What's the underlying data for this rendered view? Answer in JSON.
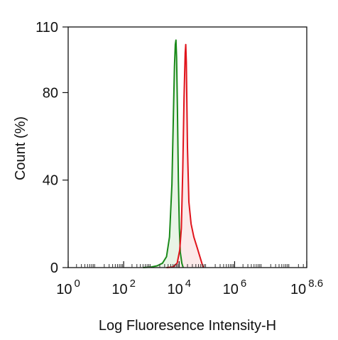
{
  "chart_data": {
    "type": "area",
    "title": "",
    "xlabel": "Log Fluoresence Intensity-H",
    "ylabel": "Count  (%)",
    "x_scale": "log",
    "xlim": [
      1,
      398107170
    ],
    "ylim": [
      0,
      110
    ],
    "x_ticks": [
      {
        "base": "10",
        "exp": "0",
        "value": 1
      },
      {
        "base": "10",
        "exp": "2",
        "value": 100
      },
      {
        "base": "10",
        "exp": "4",
        "value": 10000
      },
      {
        "base": "10",
        "exp": "6",
        "value": 1000000
      },
      {
        "base": "10",
        "exp": "8.6",
        "value": 398107170
      }
    ],
    "y_ticks": [
      {
        "label": "0",
        "value": 0
      },
      {
        "label": "40",
        "value": 40
      },
      {
        "label": "80",
        "value": 80
      },
      {
        "label": "110",
        "value": 110
      }
    ],
    "grid": false,
    "legend": "none",
    "series": [
      {
        "color": "#1a8a1a",
        "fill": "#e3f1e0",
        "points": [
          [
            500,
            0
          ],
          [
            1000,
            0.3
          ],
          [
            1600,
            0.8
          ],
          [
            2500,
            2
          ],
          [
            3500,
            5
          ],
          [
            4500,
            14
          ],
          [
            5500,
            38
          ],
          [
            6200,
            70
          ],
          [
            6800,
            92
          ],
          [
            7300,
            102
          ],
          [
            7700,
            104
          ],
          [
            8100,
            96
          ],
          [
            8700,
            72
          ],
          [
            9400,
            40
          ],
          [
            10200,
            18
          ],
          [
            11000,
            7
          ],
          [
            12500,
            2
          ],
          [
            14000,
            0
          ]
        ]
      },
      {
        "color": "#e0141c",
        "fill": "#fbe3e3",
        "points": [
          [
            3500,
            0
          ],
          [
            6000,
            0.3
          ],
          [
            8500,
            2
          ],
          [
            10500,
            8
          ],
          [
            12000,
            18
          ],
          [
            13500,
            45
          ],
          [
            15000,
            78
          ],
          [
            16500,
            98
          ],
          [
            17300,
            102
          ],
          [
            18200,
            94
          ],
          [
            20000,
            55
          ],
          [
            22500,
            30
          ],
          [
            27000,
            20
          ],
          [
            34000,
            14
          ],
          [
            45000,
            9
          ],
          [
            56000,
            5
          ],
          [
            66000,
            2
          ],
          [
            75000,
            0
          ]
        ]
      }
    ]
  }
}
